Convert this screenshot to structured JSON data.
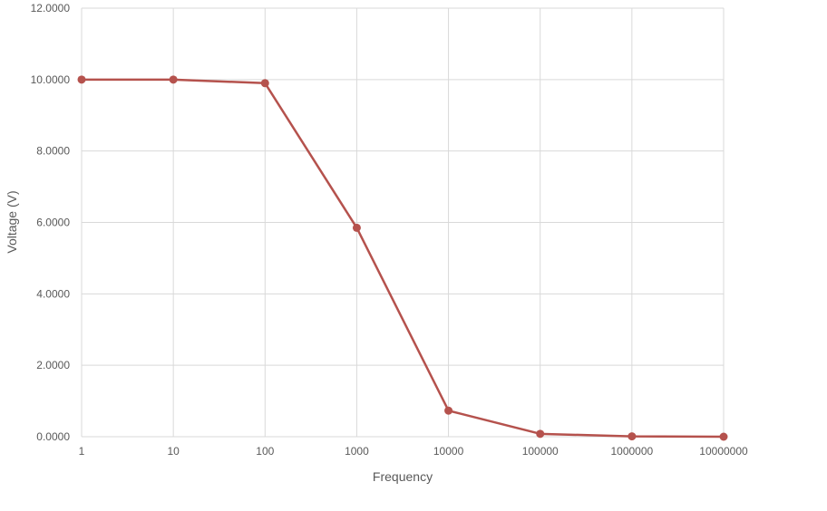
{
  "chart_data": {
    "type": "line",
    "title": "",
    "xlabel": "Frequency",
    "ylabel": "Voltage (V)",
    "categories": [
      "1",
      "10",
      "100",
      "1000",
      "10000",
      "100000",
      "1000000",
      "10000000"
    ],
    "series": [
      {
        "values": [
          10.0,
          10.0,
          9.9,
          5.85,
          0.73,
          0.08,
          0.01,
          0.0
        ],
        "color": "#b5524d"
      }
    ],
    "ylim": [
      0,
      12
    ],
    "yticks": [
      "0.0000",
      "2.0000",
      "4.0000",
      "6.0000",
      "8.0000",
      "10.0000",
      "12.0000"
    ],
    "grid": true,
    "legend": "none"
  }
}
